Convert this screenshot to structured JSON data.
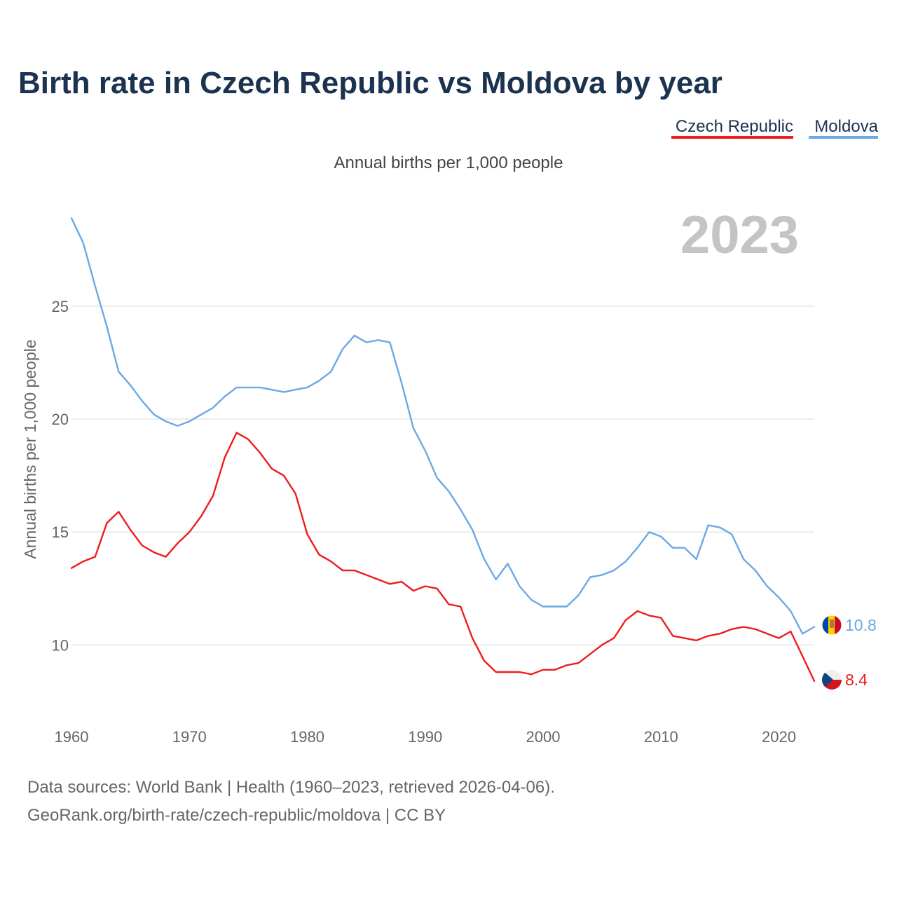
{
  "chart_data": {
    "type": "line",
    "title": "Birth rate in Czech Republic vs Moldova by year",
    "subtitle": "Annual births per 1,000 people",
    "ylabel": "Annual births per 1,000 people",
    "xlabel": "",
    "highlight_year": "2023",
    "xlim": [
      1960,
      2023
    ],
    "ylim": [
      7,
      29
    ],
    "y_ticks": [
      10,
      15,
      20,
      25
    ],
    "x_ticks": [
      1960,
      1970,
      1980,
      1990,
      2000,
      2010,
      2020
    ],
    "x": [
      1960,
      1961,
      1962,
      1963,
      1964,
      1965,
      1966,
      1967,
      1968,
      1969,
      1970,
      1971,
      1972,
      1973,
      1974,
      1975,
      1976,
      1977,
      1978,
      1979,
      1980,
      1981,
      1982,
      1983,
      1984,
      1985,
      1986,
      1987,
      1988,
      1989,
      1990,
      1991,
      1992,
      1993,
      1994,
      1995,
      1996,
      1997,
      1998,
      1999,
      2000,
      2001,
      2002,
      2003,
      2004,
      2005,
      2006,
      2007,
      2008,
      2009,
      2010,
      2011,
      2012,
      2013,
      2014,
      2015,
      2016,
      2017,
      2018,
      2019,
      2020,
      2021,
      2022,
      2023
    ],
    "series": [
      {
        "name": "Czech Republic",
        "color": "#ee1c1c",
        "end_label": "8.4",
        "values": [
          13.4,
          13.7,
          13.9,
          15.4,
          15.9,
          15.1,
          14.4,
          14.1,
          13.9,
          14.5,
          15.0,
          15.7,
          16.6,
          18.3,
          19.4,
          19.1,
          18.5,
          17.8,
          17.5,
          16.7,
          14.9,
          14.0,
          13.7,
          13.3,
          13.3,
          13.1,
          12.9,
          12.7,
          12.8,
          12.4,
          12.6,
          12.5,
          11.8,
          11.7,
          10.3,
          9.3,
          8.8,
          8.8,
          8.8,
          8.7,
          8.9,
          8.9,
          9.1,
          9.2,
          9.6,
          10.0,
          10.3,
          11.1,
          11.5,
          11.3,
          11.2,
          10.4,
          10.3,
          10.2,
          10.4,
          10.5,
          10.7,
          10.8,
          10.7,
          10.5,
          10.3,
          10.6,
          9.5,
          8.4
        ]
      },
      {
        "name": "Moldova",
        "color": "#6aa9e4",
        "end_label": "10.8",
        "values": [
          28.9,
          27.8,
          25.9,
          24.1,
          22.1,
          21.5,
          20.8,
          20.2,
          19.9,
          19.7,
          19.9,
          20.2,
          20.5,
          21.0,
          21.4,
          21.4,
          21.4,
          21.3,
          21.2,
          21.3,
          21.4,
          21.7,
          22.1,
          23.1,
          23.7,
          23.4,
          23.5,
          23.4,
          21.6,
          19.6,
          18.6,
          17.4,
          16.8,
          16.0,
          15.1,
          13.8,
          12.9,
          13.6,
          12.6,
          12.0,
          11.7,
          11.7,
          11.7,
          12.2,
          13.0,
          13.1,
          13.3,
          13.7,
          14.3,
          15.0,
          14.8,
          14.3,
          14.3,
          13.8,
          15.3,
          15.2,
          14.9,
          13.8,
          13.3,
          12.6,
          12.1,
          11.5,
          10.5,
          10.8
        ]
      }
    ]
  },
  "footer": {
    "line1": "Data sources: World Bank | Health (1960–2023, retrieved 2026-04-06).",
    "line2": "GeoRank.org/birth-rate/czech-republic/moldova | CC BY"
  }
}
